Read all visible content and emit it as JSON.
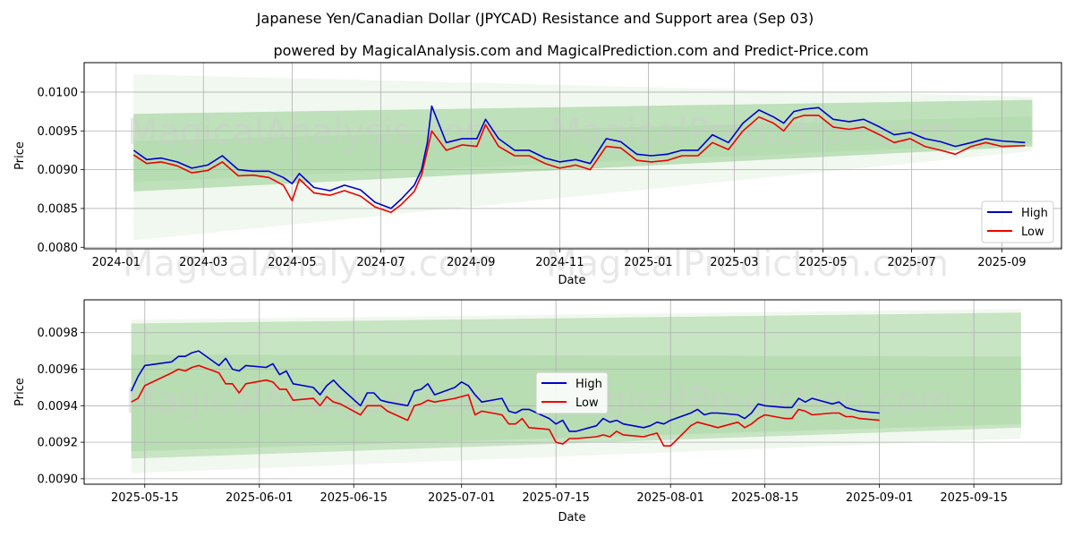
{
  "title": "Japanese Yen/Canadian Dollar (JPYCAD) Resistance and Support area (Sep 03)",
  "subtitle": "powered by MagicalAnalysis.com and MagicalPrediction.com and Predict-Price.com",
  "watermarks": [
    "MagicalAnalysis.com",
    "MagicalPrediction.com"
  ],
  "colors": {
    "high": "#0000cc",
    "low": "#ee0000",
    "band_outer": "#e6f2e1",
    "band_inner": "#b5dcb0",
    "grid": "#b0b0b0"
  },
  "chart_data": [
    {
      "type": "line",
      "xlabel": "Date",
      "ylabel": "Price",
      "xlim": [
        "2023-12-10",
        "2025-10-12"
      ],
      "ylim": [
        0.00798,
        0.01038
      ],
      "x_ticks": [
        "2024-01",
        "2024-03",
        "2024-05",
        "2024-07",
        "2024-09",
        "2024-11",
        "2025-01",
        "2025-03",
        "2025-05",
        "2025-07",
        "2025-09"
      ],
      "y_ticks": [
        "0.0080",
        "0.0085",
        "0.0090",
        "0.0095",
        "0.0100"
      ],
      "grid": true,
      "legend": "lower right",
      "legend_entries": [
        "High",
        "Low"
      ],
      "bands": [
        {
          "x": [
            "2024-01-13",
            "2025-09-22"
          ],
          "upper": [
            0.01023,
            0.00994
          ],
          "lower": [
            0.00809,
            0.00924
          ]
        },
        {
          "x": [
            "2024-01-13",
            "2025-09-22"
          ],
          "upper": [
            0.00972,
            0.0099
          ],
          "lower": [
            0.00872,
            0.0093
          ]
        },
        {
          "x": [
            "2024-01-13",
            "2025-09-22"
          ],
          "upper": [
            0.00937,
            0.00969
          ],
          "lower": [
            0.00884,
            0.00934
          ]
        }
      ],
      "series": [
        {
          "name": "High",
          "x": [
            "2024-01-13",
            "2024-01-22",
            "2024-02-01",
            "2024-02-12",
            "2024-02-22",
            "2024-03-04",
            "2024-03-14",
            "2024-03-25",
            "2024-04-04",
            "2024-04-15",
            "2024-04-25",
            "2024-05-01",
            "2024-05-06",
            "2024-05-16",
            "2024-05-27",
            "2024-06-06",
            "2024-06-17",
            "2024-06-27",
            "2024-07-08",
            "2024-07-15",
            "2024-07-24",
            "2024-07-29",
            "2024-08-02",
            "2024-08-05",
            "2024-08-15",
            "2024-08-26",
            "2024-09-05",
            "2024-09-11",
            "2024-09-20",
            "2024-10-01",
            "2024-10-11",
            "2024-10-22",
            "2024-11-01",
            "2024-11-12",
            "2024-11-22",
            "2024-12-03",
            "2024-12-13",
            "2024-12-24",
            "2025-01-03",
            "2025-01-14",
            "2025-01-24",
            "2025-02-04",
            "2025-02-14",
            "2025-02-25",
            "2025-03-07",
            "2025-03-18",
            "2025-03-28",
            "2025-04-04",
            "2025-04-11",
            "2025-04-18",
            "2025-04-28",
            "2025-05-08",
            "2025-05-19",
            "2025-05-29",
            "2025-06-09",
            "2025-06-19",
            "2025-06-30",
            "2025-07-10",
            "2025-07-21",
            "2025-07-31",
            "2025-08-11",
            "2025-08-21",
            "2025-09-01",
            "2025-09-17"
          ],
          "values": [
            0.00925,
            0.00913,
            0.00915,
            0.0091,
            0.00902,
            0.00906,
            0.00918,
            0.009,
            0.00898,
            0.00898,
            0.0089,
            0.00882,
            0.00895,
            0.00877,
            0.00873,
            0.0088,
            0.00874,
            0.00858,
            0.0085,
            0.00862,
            0.0088,
            0.009,
            0.00935,
            0.00982,
            0.00935,
            0.0094,
            0.0094,
            0.00965,
            0.0094,
            0.00925,
            0.00925,
            0.00915,
            0.0091,
            0.00913,
            0.00908,
            0.0094,
            0.00936,
            0.0092,
            0.00918,
            0.0092,
            0.00925,
            0.00925,
            0.00945,
            0.00935,
            0.0096,
            0.00977,
            0.00968,
            0.0096,
            0.00975,
            0.00978,
            0.0098,
            0.00965,
            0.00962,
            0.00965,
            0.00955,
            0.00945,
            0.00948,
            0.0094,
            0.00936,
            0.0093,
            0.00935,
            0.0094,
            0.00937,
            0.00935
          ]
        },
        {
          "name": "Low",
          "x": [
            "2024-01-13",
            "2024-01-22",
            "2024-02-01",
            "2024-02-12",
            "2024-02-22",
            "2024-03-04",
            "2024-03-14",
            "2024-03-25",
            "2024-04-04",
            "2024-04-15",
            "2024-04-25",
            "2024-05-01",
            "2024-05-06",
            "2024-05-16",
            "2024-05-27",
            "2024-06-06",
            "2024-06-17",
            "2024-06-27",
            "2024-07-08",
            "2024-07-15",
            "2024-07-24",
            "2024-07-29",
            "2024-08-02",
            "2024-08-05",
            "2024-08-15",
            "2024-08-26",
            "2024-09-05",
            "2024-09-11",
            "2024-09-20",
            "2024-10-01",
            "2024-10-11",
            "2024-10-22",
            "2024-11-01",
            "2024-11-12",
            "2024-11-22",
            "2024-12-03",
            "2024-12-13",
            "2024-12-24",
            "2025-01-03",
            "2025-01-14",
            "2025-01-24",
            "2025-02-04",
            "2025-02-14",
            "2025-02-25",
            "2025-03-07",
            "2025-03-18",
            "2025-03-28",
            "2025-04-04",
            "2025-04-11",
            "2025-04-18",
            "2025-04-28",
            "2025-05-08",
            "2025-05-19",
            "2025-05-29",
            "2025-06-09",
            "2025-06-19",
            "2025-06-30",
            "2025-07-10",
            "2025-07-21",
            "2025-07-31",
            "2025-08-11",
            "2025-08-21",
            "2025-09-01",
            "2025-09-17"
          ],
          "values": [
            0.00919,
            0.00908,
            0.0091,
            0.00905,
            0.00896,
            0.00899,
            0.0091,
            0.00892,
            0.00893,
            0.0089,
            0.0088,
            0.0086,
            0.00888,
            0.0087,
            0.00867,
            0.00873,
            0.00866,
            0.00852,
            0.00845,
            0.00855,
            0.00872,
            0.00893,
            0.00925,
            0.0095,
            0.00925,
            0.00932,
            0.0093,
            0.00958,
            0.0093,
            0.00918,
            0.00918,
            0.00908,
            0.00902,
            0.00906,
            0.009,
            0.0093,
            0.00928,
            0.00912,
            0.0091,
            0.00912,
            0.00918,
            0.00918,
            0.00935,
            0.00926,
            0.0095,
            0.00968,
            0.0096,
            0.0095,
            0.00966,
            0.0097,
            0.0097,
            0.00955,
            0.00952,
            0.00955,
            0.00945,
            0.00935,
            0.0094,
            0.0093,
            0.00925,
            0.0092,
            0.0093,
            0.00935,
            0.0093,
            0.00931
          ]
        }
      ]
    },
    {
      "type": "line",
      "xlabel": "Date",
      "ylabel": "Price",
      "xlim": [
        "2025-05-06",
        "2025-09-28"
      ],
      "ylim": [
        0.00897,
        0.00998
      ],
      "x_ticks": [
        "2025-05-15",
        "2025-06-01",
        "2025-06-15",
        "2025-07-01",
        "2025-07-15",
        "2025-08-01",
        "2025-08-15",
        "2025-09-01",
        "2025-09-15"
      ],
      "y_ticks": [
        "0.0090",
        "0.0092",
        "0.0094",
        "0.0096",
        "0.0098"
      ],
      "grid": true,
      "legend": "center",
      "legend_entries": [
        "High",
        "Low"
      ],
      "bands": [
        {
          "x": [
            "2025-05-13",
            "2025-09-22"
          ],
          "upper": [
            0.00987,
            0.00993
          ],
          "lower": [
            0.00903,
            0.00922
          ]
        },
        {
          "x": [
            "2025-05-13",
            "2025-09-22"
          ],
          "upper": [
            0.00985,
            0.00991
          ],
          "lower": [
            0.00911,
            0.00928
          ]
        },
        {
          "x": [
            "2025-05-13",
            "2025-09-22"
          ],
          "upper": [
            0.00968,
            0.00967
          ],
          "lower": [
            0.00915,
            0.0093
          ]
        }
      ],
      "series": [
        {
          "name": "High",
          "x": [
            "2025-05-13",
            "2025-05-14",
            "2025-05-15",
            "2025-05-19",
            "2025-05-20",
            "2025-05-21",
            "2025-05-22",
            "2025-05-23",
            "2025-05-26",
            "2025-05-27",
            "2025-05-28",
            "2025-05-29",
            "2025-05-30",
            "2025-06-02",
            "2025-06-03",
            "2025-06-04",
            "2025-06-05",
            "2025-06-06",
            "2025-06-09",
            "2025-06-10",
            "2025-06-11",
            "2025-06-12",
            "2025-06-13",
            "2025-06-16",
            "2025-06-17",
            "2025-06-18",
            "2025-06-19",
            "2025-06-20",
            "2025-06-23",
            "2025-06-24",
            "2025-06-25",
            "2025-06-26",
            "2025-06-27",
            "2025-06-30",
            "2025-07-01",
            "2025-07-02",
            "2025-07-03",
            "2025-07-04",
            "2025-07-07",
            "2025-07-08",
            "2025-07-09",
            "2025-07-10",
            "2025-07-11",
            "2025-07-14",
            "2025-07-15",
            "2025-07-16",
            "2025-07-17",
            "2025-07-18",
            "2025-07-21",
            "2025-07-22",
            "2025-07-23",
            "2025-07-24",
            "2025-07-25",
            "2025-07-28",
            "2025-07-29",
            "2025-07-30",
            "2025-07-31",
            "2025-08-01",
            "2025-08-04",
            "2025-08-05",
            "2025-08-06",
            "2025-08-07",
            "2025-08-08",
            "2025-08-11",
            "2025-08-12",
            "2025-08-13",
            "2025-08-14",
            "2025-08-15",
            "2025-08-18",
            "2025-08-19",
            "2025-08-20",
            "2025-08-21",
            "2025-08-22",
            "2025-08-25",
            "2025-08-26",
            "2025-08-27",
            "2025-08-28",
            "2025-08-29",
            "2025-09-01"
          ],
          "values": [
            0.00948,
            0.00956,
            0.00962,
            0.00964,
            0.00967,
            0.00967,
            0.00969,
            0.0097,
            0.00962,
            0.00966,
            0.0096,
            0.00959,
            0.00962,
            0.00961,
            0.00963,
            0.00957,
            0.00959,
            0.00952,
            0.0095,
            0.00946,
            0.00951,
            0.00954,
            0.0095,
            0.0094,
            0.00947,
            0.00947,
            0.00943,
            0.00942,
            0.0094,
            0.00948,
            0.00949,
            0.00952,
            0.00946,
            0.0095,
            0.00953,
            0.00951,
            0.00946,
            0.00942,
            0.00944,
            0.00937,
            0.00936,
            0.00938,
            0.00938,
            0.00933,
            0.0093,
            0.00932,
            0.00926,
            0.00926,
            0.00929,
            0.00933,
            0.00931,
            0.00932,
            0.0093,
            0.00928,
            0.00929,
            0.00931,
            0.0093,
            0.00932,
            0.00936,
            0.00938,
            0.00935,
            0.00936,
            0.00936,
            0.00935,
            0.00933,
            0.00936,
            0.00941,
            0.0094,
            0.00939,
            0.00939,
            0.00944,
            0.00942,
            0.00944,
            0.00941,
            0.00942,
            0.00939,
            0.00938,
            0.00937,
            0.00936
          ]
        },
        {
          "name": "Low",
          "x": [
            "2025-05-13",
            "2025-05-14",
            "2025-05-15",
            "2025-05-19",
            "2025-05-20",
            "2025-05-21",
            "2025-05-22",
            "2025-05-23",
            "2025-05-26",
            "2025-05-27",
            "2025-05-28",
            "2025-05-29",
            "2025-05-30",
            "2025-06-02",
            "2025-06-03",
            "2025-06-04",
            "2025-06-05",
            "2025-06-06",
            "2025-06-09",
            "2025-06-10",
            "2025-06-11",
            "2025-06-12",
            "2025-06-13",
            "2025-06-16",
            "2025-06-17",
            "2025-06-18",
            "2025-06-19",
            "2025-06-20",
            "2025-06-23",
            "2025-06-24",
            "2025-06-25",
            "2025-06-26",
            "2025-06-27",
            "2025-06-30",
            "2025-07-01",
            "2025-07-02",
            "2025-07-03",
            "2025-07-04",
            "2025-07-07",
            "2025-07-08",
            "2025-07-09",
            "2025-07-10",
            "2025-07-11",
            "2025-07-14",
            "2025-07-15",
            "2025-07-16",
            "2025-07-17",
            "2025-07-18",
            "2025-07-21",
            "2025-07-22",
            "2025-07-23",
            "2025-07-24",
            "2025-07-25",
            "2025-07-28",
            "2025-07-29",
            "2025-07-30",
            "2025-07-31",
            "2025-08-01",
            "2025-08-04",
            "2025-08-05",
            "2025-08-06",
            "2025-08-07",
            "2025-08-08",
            "2025-08-11",
            "2025-08-12",
            "2025-08-13",
            "2025-08-14",
            "2025-08-15",
            "2025-08-18",
            "2025-08-19",
            "2025-08-20",
            "2025-08-21",
            "2025-08-22",
            "2025-08-25",
            "2025-08-26",
            "2025-08-27",
            "2025-08-28",
            "2025-08-29",
            "2025-09-01"
          ],
          "values": [
            0.00942,
            0.00944,
            0.00951,
            0.00958,
            0.0096,
            0.00959,
            0.00961,
            0.00962,
            0.00958,
            0.00952,
            0.00952,
            0.00947,
            0.00952,
            0.00954,
            0.00953,
            0.00949,
            0.00949,
            0.00943,
            0.00944,
            0.0094,
            0.00945,
            0.00942,
            0.00941,
            0.00935,
            0.0094,
            0.0094,
            0.0094,
            0.00937,
            0.00932,
            0.0094,
            0.00941,
            0.00943,
            0.00942,
            0.00944,
            0.00945,
            0.00946,
            0.00935,
            0.00937,
            0.00935,
            0.0093,
            0.0093,
            0.00933,
            0.00928,
            0.00927,
            0.0092,
            0.00919,
            0.00922,
            0.00922,
            0.00923,
            0.00924,
            0.00923,
            0.00926,
            0.00924,
            0.00923,
            0.00924,
            0.00925,
            0.00918,
            0.00918,
            0.00929,
            0.00931,
            0.0093,
            0.00929,
            0.00928,
            0.00931,
            0.00928,
            0.0093,
            0.00933,
            0.00935,
            0.00933,
            0.00933,
            0.00938,
            0.00937,
            0.00935,
            0.00936,
            0.00936,
            0.00934,
            0.00934,
            0.00933,
            0.00932
          ]
        }
      ]
    }
  ]
}
